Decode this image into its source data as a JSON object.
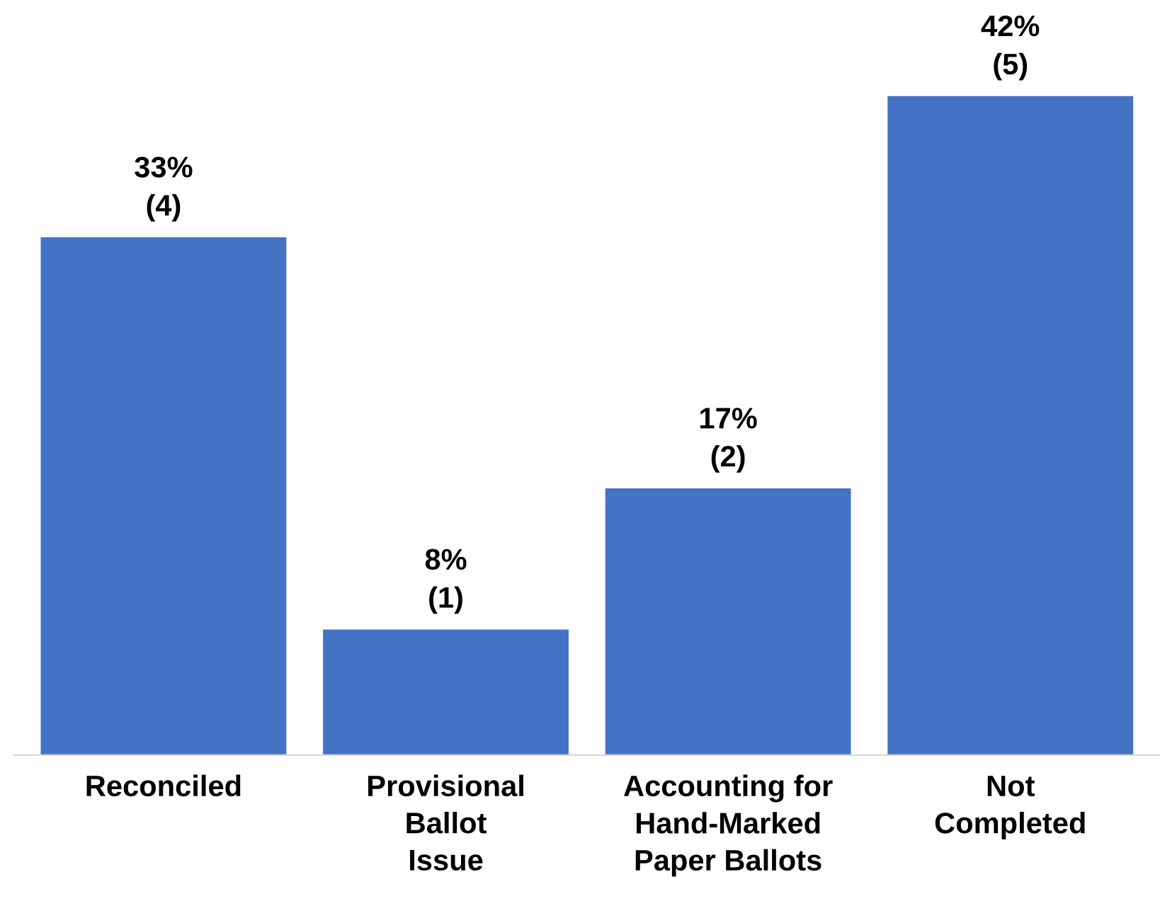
{
  "chart_data": {
    "type": "bar",
    "categories": [
      "Reconciled",
      "Provisional\nBallot\nIssue",
      "Accounting for\nHand-Marked\nPaper Ballots",
      "Not\nCompleted"
    ],
    "values": [
      33,
      8,
      17,
      42
    ],
    "value_labels": [
      "33%\n(4)",
      "8%\n(1)",
      "17%\n(2)",
      "42%\n(5)"
    ],
    "color": "#4472c4",
    "grid": false,
    "legend": false
  }
}
